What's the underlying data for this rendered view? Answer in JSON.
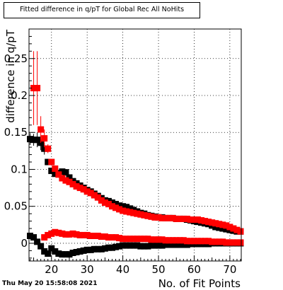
{
  "title": "Fitted difference in q/pT for Global Rec All NoHits",
  "timestamp": "Thu May 20 15:58:08 2021",
  "chart_data": {
    "type": "scatter",
    "title": "Fitted difference in q/pT for Global Rec All NoHits",
    "xlabel": "No. of Fit Points",
    "ylabel": "difference in q/pT",
    "xlim": [
      13.7,
      73.2
    ],
    "ylim": [
      -0.024,
      0.29
    ],
    "xticks": [
      20,
      30,
      40,
      50,
      60,
      70
    ],
    "yticks": [
      0,
      0.05,
      0.1,
      0.15,
      0.2,
      0.25
    ],
    "ytick_labels": [
      "0",
      "0.05",
      "0.1",
      "0.15",
      "0.2",
      "0.25"
    ],
    "grid": true,
    "series": [
      {
        "color": "#000000",
        "x": [
          14,
          15,
          16,
          17,
          18,
          19,
          20,
          21,
          22,
          23,
          24,
          25,
          26,
          27,
          28,
          29,
          30,
          31,
          32,
          33,
          34,
          35,
          36,
          37,
          38,
          39,
          40,
          41,
          42,
          43,
          44,
          45,
          46,
          47,
          48,
          49,
          50,
          51,
          52,
          53,
          54,
          55,
          56,
          57,
          58,
          59,
          60,
          61,
          62,
          63,
          64,
          65,
          66,
          67,
          68,
          69,
          70,
          71,
          72,
          73
        ],
        "values": [
          0.141,
          0.14,
          0.14,
          0.136,
          0.128,
          0.11,
          0.098,
          0.094,
          0.095,
          0.097,
          0.096,
          0.089,
          0.084,
          0.081,
          0.078,
          0.075,
          0.072,
          0.07,
          0.067,
          0.064,
          0.061,
          0.058,
          0.057,
          0.055,
          0.053,
          0.051,
          0.05,
          0.049,
          0.047,
          0.045,
          0.043,
          0.041,
          0.04,
          0.038,
          0.037,
          0.036,
          0.035,
          0.035,
          0.034,
          0.034,
          0.034,
          0.033,
          0.033,
          0.033,
          0.032,
          0.031,
          0.03,
          0.029,
          0.028,
          0.027,
          0.026,
          0.024,
          0.022,
          0.021,
          0.02,
          0.019,
          0.018,
          0.017,
          0.016,
          0.016
        ],
        "errors": [
          0.008,
          0.008,
          0.01,
          0.01,
          0.008,
          0.004,
          0.003,
          0.002,
          0.002,
          0.002,
          0.002,
          0.002,
          0.002,
          0.002,
          0.002,
          0.002,
          0.002,
          0.002,
          0.002,
          0.002,
          0.001,
          0.001,
          0.001,
          0.001,
          0.001,
          0.001,
          0.001,
          0.001,
          0.001,
          0.001,
          0.001,
          0.001,
          0.001,
          0.001,
          0.001,
          0.001,
          0.001,
          0.001,
          0.001,
          0.001,
          0.001,
          0.001,
          0.001,
          0.001,
          0.001,
          0.001,
          0.001,
          0.001,
          0.001,
          0.001,
          0.001,
          0.001,
          0.001,
          0.001,
          0.001,
          0.001,
          0.001,
          0.001,
          0.001,
          0.001
        ]
      },
      {
        "color": "#000000",
        "x": [
          14,
          15,
          16,
          17,
          18,
          19,
          20,
          21,
          22,
          23,
          24,
          25,
          26,
          27,
          28,
          29,
          30,
          31,
          32,
          33,
          34,
          35,
          36,
          37,
          38,
          39,
          40,
          41,
          42,
          43,
          44,
          45,
          46,
          47,
          48,
          49,
          50,
          51,
          52,
          53,
          54,
          55,
          56,
          57,
          58,
          59,
          60,
          61,
          62,
          63,
          64,
          65,
          66,
          67,
          68,
          69,
          70,
          71,
          72,
          73
        ],
        "values": [
          0.01,
          0.008,
          0.002,
          -0.004,
          -0.011,
          -0.014,
          -0.007,
          -0.011,
          -0.014,
          -0.015,
          -0.015,
          -0.015,
          -0.013,
          -0.012,
          -0.011,
          -0.01,
          -0.009,
          -0.009,
          -0.008,
          -0.008,
          -0.008,
          -0.007,
          -0.006,
          -0.006,
          -0.005,
          -0.004,
          -0.003,
          -0.003,
          -0.003,
          -0.003,
          -0.003,
          -0.004,
          -0.004,
          -0.004,
          -0.003,
          -0.003,
          -0.003,
          -0.003,
          -0.002,
          -0.002,
          -0.002,
          -0.002,
          -0.002,
          -0.002,
          -0.002,
          -0.001,
          -0.001,
          -0.001,
          -0.001,
          -0.001,
          -0.001,
          0.0,
          0.0,
          0.0,
          0.0,
          0.0,
          0.0,
          0.0,
          0.0,
          0.0
        ],
        "errors": [
          0.003,
          0.003,
          0.003,
          0.002,
          0.002,
          0.002,
          0.002,
          0.001,
          0.001,
          0.001,
          0.001,
          0.001,
          0.001,
          0.001,
          0.001,
          0.001,
          0.001,
          0.001,
          0.001,
          0.001,
          0.001,
          0.001,
          0.001,
          0.001,
          0.001,
          0.001,
          0.001,
          0.001,
          0.001,
          0.001,
          0.001,
          0.001,
          0.001,
          0.001,
          0.001,
          0.001,
          0.001,
          0.001,
          0.001,
          0.001,
          0.001,
          0.001,
          0.001,
          0.001,
          0.001,
          0.001,
          0.001,
          0.001,
          0.001,
          0.001,
          0.001,
          0.001,
          0.001,
          0.001,
          0.001,
          0.001,
          0.001,
          0.001,
          0.001,
          0.001
        ]
      },
      {
        "color": "#ff0000",
        "x": [
          15,
          16,
          17,
          18,
          19,
          20,
          21,
          22,
          23,
          24,
          25,
          26,
          27,
          28,
          29,
          30,
          31,
          32,
          33,
          34,
          35,
          36,
          37,
          38,
          39,
          40,
          41,
          42,
          43,
          44,
          45,
          46,
          47,
          48,
          49,
          50,
          51,
          52,
          53,
          54,
          55,
          56,
          57,
          58,
          59,
          60,
          61,
          62,
          63,
          64,
          65,
          66,
          67,
          68,
          69,
          70,
          71,
          72,
          73
        ],
        "values": [
          0.21,
          0.21,
          0.154,
          0.142,
          0.128,
          0.11,
          0.101,
          0.093,
          0.088,
          0.085,
          0.083,
          0.08,
          0.077,
          0.075,
          0.073,
          0.07,
          0.068,
          0.065,
          0.062,
          0.058,
          0.055,
          0.053,
          0.05,
          0.048,
          0.046,
          0.044,
          0.043,
          0.042,
          0.041,
          0.04,
          0.039,
          0.038,
          0.037,
          0.036,
          0.035,
          0.035,
          0.034,
          0.034,
          0.034,
          0.034,
          0.033,
          0.033,
          0.033,
          0.033,
          0.032,
          0.032,
          0.032,
          0.031,
          0.03,
          0.029,
          0.028,
          0.027,
          0.026,
          0.025,
          0.024,
          0.022,
          0.02,
          0.018,
          0.016
        ],
        "errors": [
          0.05,
          0.05,
          0.018,
          0.012,
          0.006,
          0.004,
          0.003,
          0.002,
          0.002,
          0.002,
          0.002,
          0.002,
          0.002,
          0.002,
          0.002,
          0.002,
          0.002,
          0.002,
          0.001,
          0.001,
          0.001,
          0.001,
          0.001,
          0.001,
          0.001,
          0.001,
          0.001,
          0.001,
          0.001,
          0.001,
          0.001,
          0.001,
          0.001,
          0.001,
          0.001,
          0.001,
          0.001,
          0.001,
          0.001,
          0.001,
          0.001,
          0.001,
          0.001,
          0.001,
          0.001,
          0.001,
          0.001,
          0.001,
          0.001,
          0.001,
          0.001,
          0.001,
          0.001,
          0.001,
          0.001,
          0.001,
          0.001,
          0.001,
          0.001
        ]
      },
      {
        "color": "#ff0000",
        "x": [
          18,
          19,
          20,
          21,
          22,
          23,
          24,
          25,
          26,
          27,
          28,
          29,
          30,
          31,
          32,
          33,
          34,
          35,
          36,
          37,
          38,
          39,
          40,
          41,
          42,
          43,
          44,
          45,
          46,
          47,
          48,
          49,
          50,
          51,
          52,
          53,
          54,
          55,
          56,
          57,
          58,
          59,
          60,
          61,
          62,
          63,
          64,
          65,
          66,
          67,
          68,
          69,
          70,
          71,
          72,
          73
        ],
        "values": [
          0.008,
          0.011,
          0.013,
          0.015,
          0.014,
          0.013,
          0.012,
          0.012,
          0.013,
          0.012,
          0.011,
          0.011,
          0.011,
          0.01,
          0.01,
          0.01,
          0.009,
          0.009,
          0.008,
          0.008,
          0.008,
          0.007,
          0.006,
          0.006,
          0.006,
          0.006,
          0.006,
          0.006,
          0.006,
          0.006,
          0.005,
          0.005,
          0.005,
          0.005,
          0.004,
          0.004,
          0.004,
          0.004,
          0.004,
          0.004,
          0.003,
          0.003,
          0.003,
          0.003,
          0.003,
          0.003,
          0.003,
          0.002,
          0.002,
          0.002,
          0.002,
          0.001,
          0.001,
          0.001,
          0.001,
          0.001
        ],
        "errors": [
          0.002,
          0.002,
          0.002,
          0.002,
          0.002,
          0.001,
          0.001,
          0.001,
          0.001,
          0.001,
          0.001,
          0.001,
          0.001,
          0.001,
          0.001,
          0.001,
          0.001,
          0.001,
          0.001,
          0.001,
          0.001,
          0.001,
          0.001,
          0.001,
          0.001,
          0.001,
          0.001,
          0.001,
          0.001,
          0.001,
          0.001,
          0.001,
          0.001,
          0.001,
          0.001,
          0.001,
          0.001,
          0.001,
          0.001,
          0.001,
          0.001,
          0.001,
          0.001,
          0.001,
          0.001,
          0.001,
          0.001,
          0.001,
          0.001,
          0.001,
          0.001,
          0.001,
          0.001,
          0.001,
          0.001,
          0.001
        ]
      }
    ]
  }
}
